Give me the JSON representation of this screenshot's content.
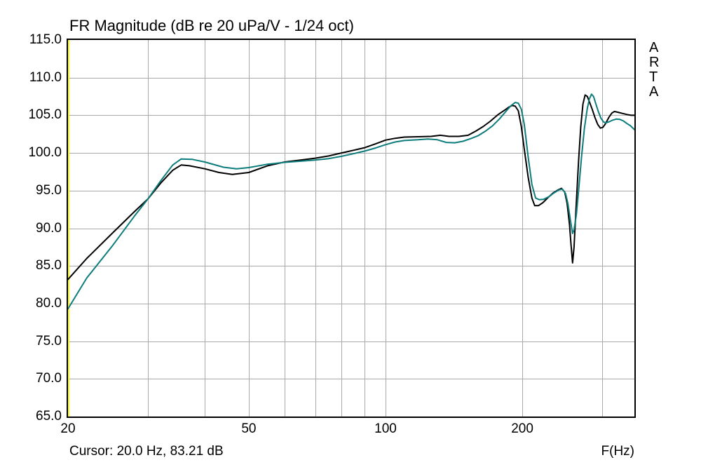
{
  "window": {
    "app_name": "ARTA"
  },
  "watermark": {
    "text": "ARTA"
  },
  "status": {
    "cursor_text": "Cursor: 20.0 Hz, 83.21 dB"
  },
  "colors": {
    "background": "#ffffff",
    "grid": "#a9a9a9",
    "border": "#000000",
    "cursor_line": "#ffff00",
    "series_main": "#000000",
    "series_overlay": "#0d7c7c"
  },
  "chart_data": {
    "type": "line",
    "title": "FR Magnitude (dB re 20 uPa/V - 1/24 oct)",
    "grid": true,
    "x_axis": {
      "label": "F(Hz)",
      "scale": "log",
      "min": 20,
      "max": 353,
      "tick_labels": [
        {
          "value": 20,
          "label": "20"
        },
        {
          "value": 50,
          "label": "50"
        },
        {
          "value": 100,
          "label": "100"
        },
        {
          "value": 200,
          "label": "200"
        }
      ],
      "gridlines": [
        30,
        40,
        50,
        60,
        70,
        80,
        90,
        100,
        200,
        300
      ]
    },
    "y_axis": {
      "label": "dB re 20 uPa/V",
      "min": 65,
      "max": 115,
      "tick_step": 5,
      "tick_labels": [
        "115.0",
        "110.0",
        "105.0",
        "100.0",
        "95.0",
        "90.0",
        "85.0",
        "80.0",
        "75.0",
        "70.0",
        "65.0"
      ],
      "gridlines": [
        70,
        75,
        80,
        85,
        90,
        95,
        100,
        105,
        110
      ]
    },
    "cursor": {
      "freq_hz": 20.0,
      "db": 83.21,
      "line_color": "#ffff00"
    },
    "series": [
      {
        "name": "fr-measurement-black",
        "color": "#000000",
        "points": [
          [
            20,
            83.2
          ],
          [
            22,
            86.0
          ],
          [
            25,
            89.3
          ],
          [
            28,
            92.2
          ],
          [
            30,
            93.9
          ],
          [
            32,
            96.0
          ],
          [
            34,
            97.7
          ],
          [
            35.5,
            98.4
          ],
          [
            37,
            98.3
          ],
          [
            40,
            97.9
          ],
          [
            43,
            97.4
          ],
          [
            46,
            97.15
          ],
          [
            50,
            97.4
          ],
          [
            55,
            98.3
          ],
          [
            60,
            98.8
          ],
          [
            65,
            99.05
          ],
          [
            70,
            99.3
          ],
          [
            75,
            99.6
          ],
          [
            80,
            100.0
          ],
          [
            85,
            100.35
          ],
          [
            90,
            100.7
          ],
          [
            95,
            101.2
          ],
          [
            100,
            101.7
          ],
          [
            105,
            101.95
          ],
          [
            110,
            102.1
          ],
          [
            118,
            102.15
          ],
          [
            126,
            102.2
          ],
          [
            132,
            102.35
          ],
          [
            138,
            102.2
          ],
          [
            145,
            102.2
          ],
          [
            152,
            102.35
          ],
          [
            158,
            102.9
          ],
          [
            164,
            103.5
          ],
          [
            170,
            104.2
          ],
          [
            177,
            105.1
          ],
          [
            183,
            105.7
          ],
          [
            187,
            106.1
          ],
          [
            190,
            106.3
          ],
          [
            193,
            106.2
          ],
          [
            196,
            105.6
          ],
          [
            199,
            103.5
          ],
          [
            202,
            100.5
          ],
          [
            206,
            96.8
          ],
          [
            210,
            94.0
          ],
          [
            213,
            93.0
          ],
          [
            217,
            93.0
          ],
          [
            222,
            93.4
          ],
          [
            228,
            94.1
          ],
          [
            234,
            94.7
          ],
          [
            240,
            95.1
          ],
          [
            244,
            95.3
          ],
          [
            248,
            94.8
          ],
          [
            251,
            93.3
          ],
          [
            254,
            90.5
          ],
          [
            256,
            87.8
          ],
          [
            258,
            85.4
          ],
          [
            260,
            87.5
          ],
          [
            263,
            93.5
          ],
          [
            266,
            99.0
          ],
          [
            269,
            103.5
          ],
          [
            272,
            106.5
          ],
          [
            275,
            107.7
          ],
          [
            278,
            107.5
          ],
          [
            281,
            106.8
          ],
          [
            285,
            105.8
          ],
          [
            289,
            104.7
          ],
          [
            293,
            103.8
          ],
          [
            297,
            103.3
          ],
          [
            301,
            103.4
          ],
          [
            305,
            103.9
          ],
          [
            310,
            104.7
          ],
          [
            315,
            105.3
          ],
          [
            319,
            105.5
          ],
          [
            325,
            105.4
          ],
          [
            332,
            105.25
          ],
          [
            340,
            105.1
          ],
          [
            347,
            105.0
          ],
          [
            353,
            105.0
          ]
        ]
      },
      {
        "name": "fr-overlay-teal",
        "color": "#0d7c7c",
        "points": [
          [
            20,
            79.3
          ],
          [
            22,
            83.4
          ],
          [
            25,
            87.6
          ],
          [
            28,
            91.6
          ],
          [
            30,
            93.9
          ],
          [
            32,
            96.3
          ],
          [
            34,
            98.4
          ],
          [
            35.5,
            99.2
          ],
          [
            37.5,
            99.15
          ],
          [
            40,
            98.8
          ],
          [
            44,
            98.1
          ],
          [
            47,
            97.9
          ],
          [
            50,
            98.05
          ],
          [
            55,
            98.5
          ],
          [
            60,
            98.75
          ],
          [
            65,
            98.9
          ],
          [
            70,
            99.05
          ],
          [
            75,
            99.25
          ],
          [
            80,
            99.55
          ],
          [
            85,
            99.9
          ],
          [
            90,
            100.25
          ],
          [
            95,
            100.65
          ],
          [
            100,
            101.1
          ],
          [
            105,
            101.45
          ],
          [
            110,
            101.65
          ],
          [
            118,
            101.75
          ],
          [
            124,
            101.85
          ],
          [
            130,
            101.75
          ],
          [
            136,
            101.4
          ],
          [
            142,
            101.35
          ],
          [
            148,
            101.55
          ],
          [
            154,
            101.9
          ],
          [
            160,
            102.3
          ],
          [
            166,
            102.9
          ],
          [
            172,
            103.6
          ],
          [
            178,
            104.5
          ],
          [
            184,
            105.5
          ],
          [
            189,
            106.3
          ],
          [
            193,
            106.7
          ],
          [
            196,
            106.6
          ],
          [
            199,
            105.8
          ],
          [
            202,
            103.8
          ],
          [
            206,
            99.5
          ],
          [
            210,
            95.8
          ],
          [
            214,
            94.0
          ],
          [
            218,
            93.8
          ],
          [
            223,
            93.85
          ],
          [
            229,
            94.2
          ],
          [
            235,
            94.7
          ],
          [
            241,
            95.1
          ],
          [
            245,
            95.2
          ],
          [
            249,
            94.6
          ],
          [
            252,
            93.3
          ],
          [
            255,
            91.2
          ],
          [
            258,
            89.3
          ],
          [
            260,
            89.8
          ],
          [
            263,
            91.8
          ],
          [
            266,
            95.0
          ],
          [
            270,
            99.5
          ],
          [
            274,
            103.3
          ],
          [
            278,
            105.9
          ],
          [
            281,
            107.2
          ],
          [
            284,
            107.8
          ],
          [
            287,
            107.5
          ],
          [
            290,
            106.6
          ],
          [
            294,
            105.5
          ],
          [
            298,
            104.6
          ],
          [
            302,
            104.1
          ],
          [
            306,
            104.0
          ],
          [
            311,
            104.15
          ],
          [
            316,
            104.35
          ],
          [
            322,
            104.5
          ],
          [
            328,
            104.45
          ],
          [
            334,
            104.25
          ],
          [
            340,
            103.9
          ],
          [
            346,
            103.6
          ],
          [
            353,
            103.1
          ]
        ]
      }
    ]
  }
}
